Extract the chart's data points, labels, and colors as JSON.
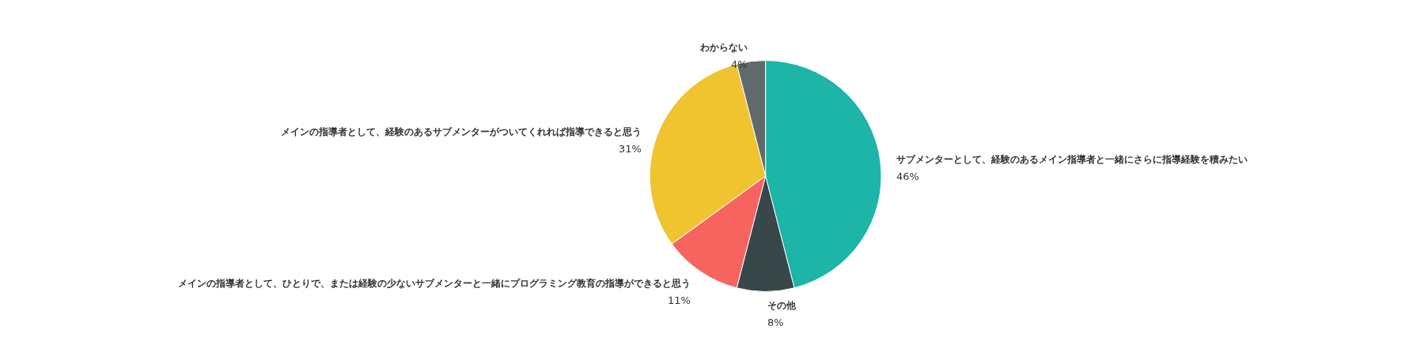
{
  "chart_data": {
    "type": "pie",
    "categories": [
      "サブメンターとして、経験のあるメイン指導者と一緒にさらに指導経験を積みたい",
      "その他",
      "メインの指導者として、ひとりで、または経験の少ないサブメンターと一緒にプログラミング教育の指導ができると思う",
      "メインの指導者として、経験のあるサブメンターがついてくれれば指導できると思う",
      "わからない"
    ],
    "values": [
      46,
      8,
      11,
      31,
      4
    ],
    "colors": [
      "#1cb5a8",
      "#37474a",
      "#f76460",
      "#f0c431",
      "#5f6b6b"
    ],
    "value_labels": [
      "46%",
      "8%",
      "11%",
      "31%",
      "4%"
    ],
    "legend": false
  }
}
